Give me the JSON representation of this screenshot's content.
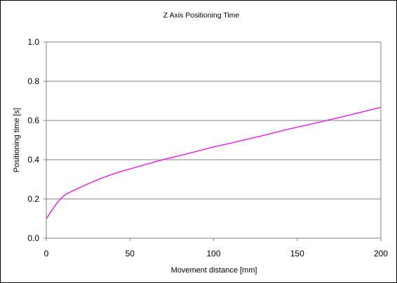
{
  "chart_data": {
    "type": "line",
    "title": "Z Axis Positioning Time",
    "xlabel": "Movement distance [mm]",
    "ylabel": "Positioning time [s]",
    "xlim": [
      0,
      200
    ],
    "ylim": [
      0,
      1.0
    ],
    "x_ticks": [
      "0",
      "50",
      "100",
      "150",
      "200"
    ],
    "y_ticks": [
      "0.0",
      "0.2",
      "0.4",
      "0.6",
      "0.8",
      "1.0"
    ],
    "grid": "horizontal",
    "legend": "none",
    "series": [
      {
        "color": "#ff00ff",
        "x": [
          0,
          2,
          4,
          6,
          8,
          10,
          12,
          15,
          20,
          25,
          30,
          35,
          40,
          45,
          50,
          60,
          70,
          80,
          90,
          100,
          110,
          120,
          130,
          140,
          150,
          160,
          170,
          180,
          190,
          200
        ],
        "y": [
          0.1,
          0.125,
          0.15,
          0.175,
          0.195,
          0.213,
          0.225,
          0.238,
          0.258,
          0.277,
          0.295,
          0.312,
          0.327,
          0.341,
          0.353,
          0.377,
          0.401,
          0.421,
          0.443,
          0.465,
          0.484,
          0.504,
          0.524,
          0.546,
          0.566,
          0.585,
          0.605,
          0.625,
          0.646,
          0.667
        ]
      }
    ]
  }
}
